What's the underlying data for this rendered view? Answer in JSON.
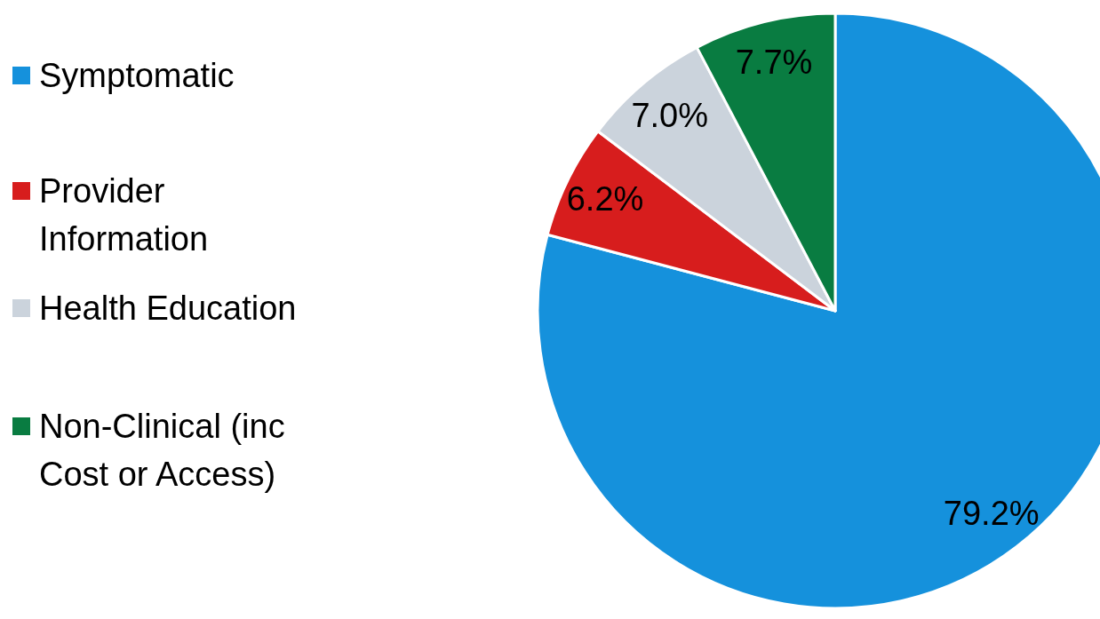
{
  "chart_data": {
    "type": "pie",
    "categories": [
      "Symptomatic",
      "Provider Information",
      "Health Education",
      "Non-Clinical (inc Cost or Access)"
    ],
    "values": [
      79.2,
      6.2,
      7.0,
      7.7
    ],
    "colors": [
      "#1591dc",
      "#d71d1d",
      "#cbd3dc",
      "#097c41"
    ],
    "value_labels": [
      "79.2%",
      "6.2%",
      "7.0%",
      "7.7%"
    ],
    "legend": "left"
  }
}
